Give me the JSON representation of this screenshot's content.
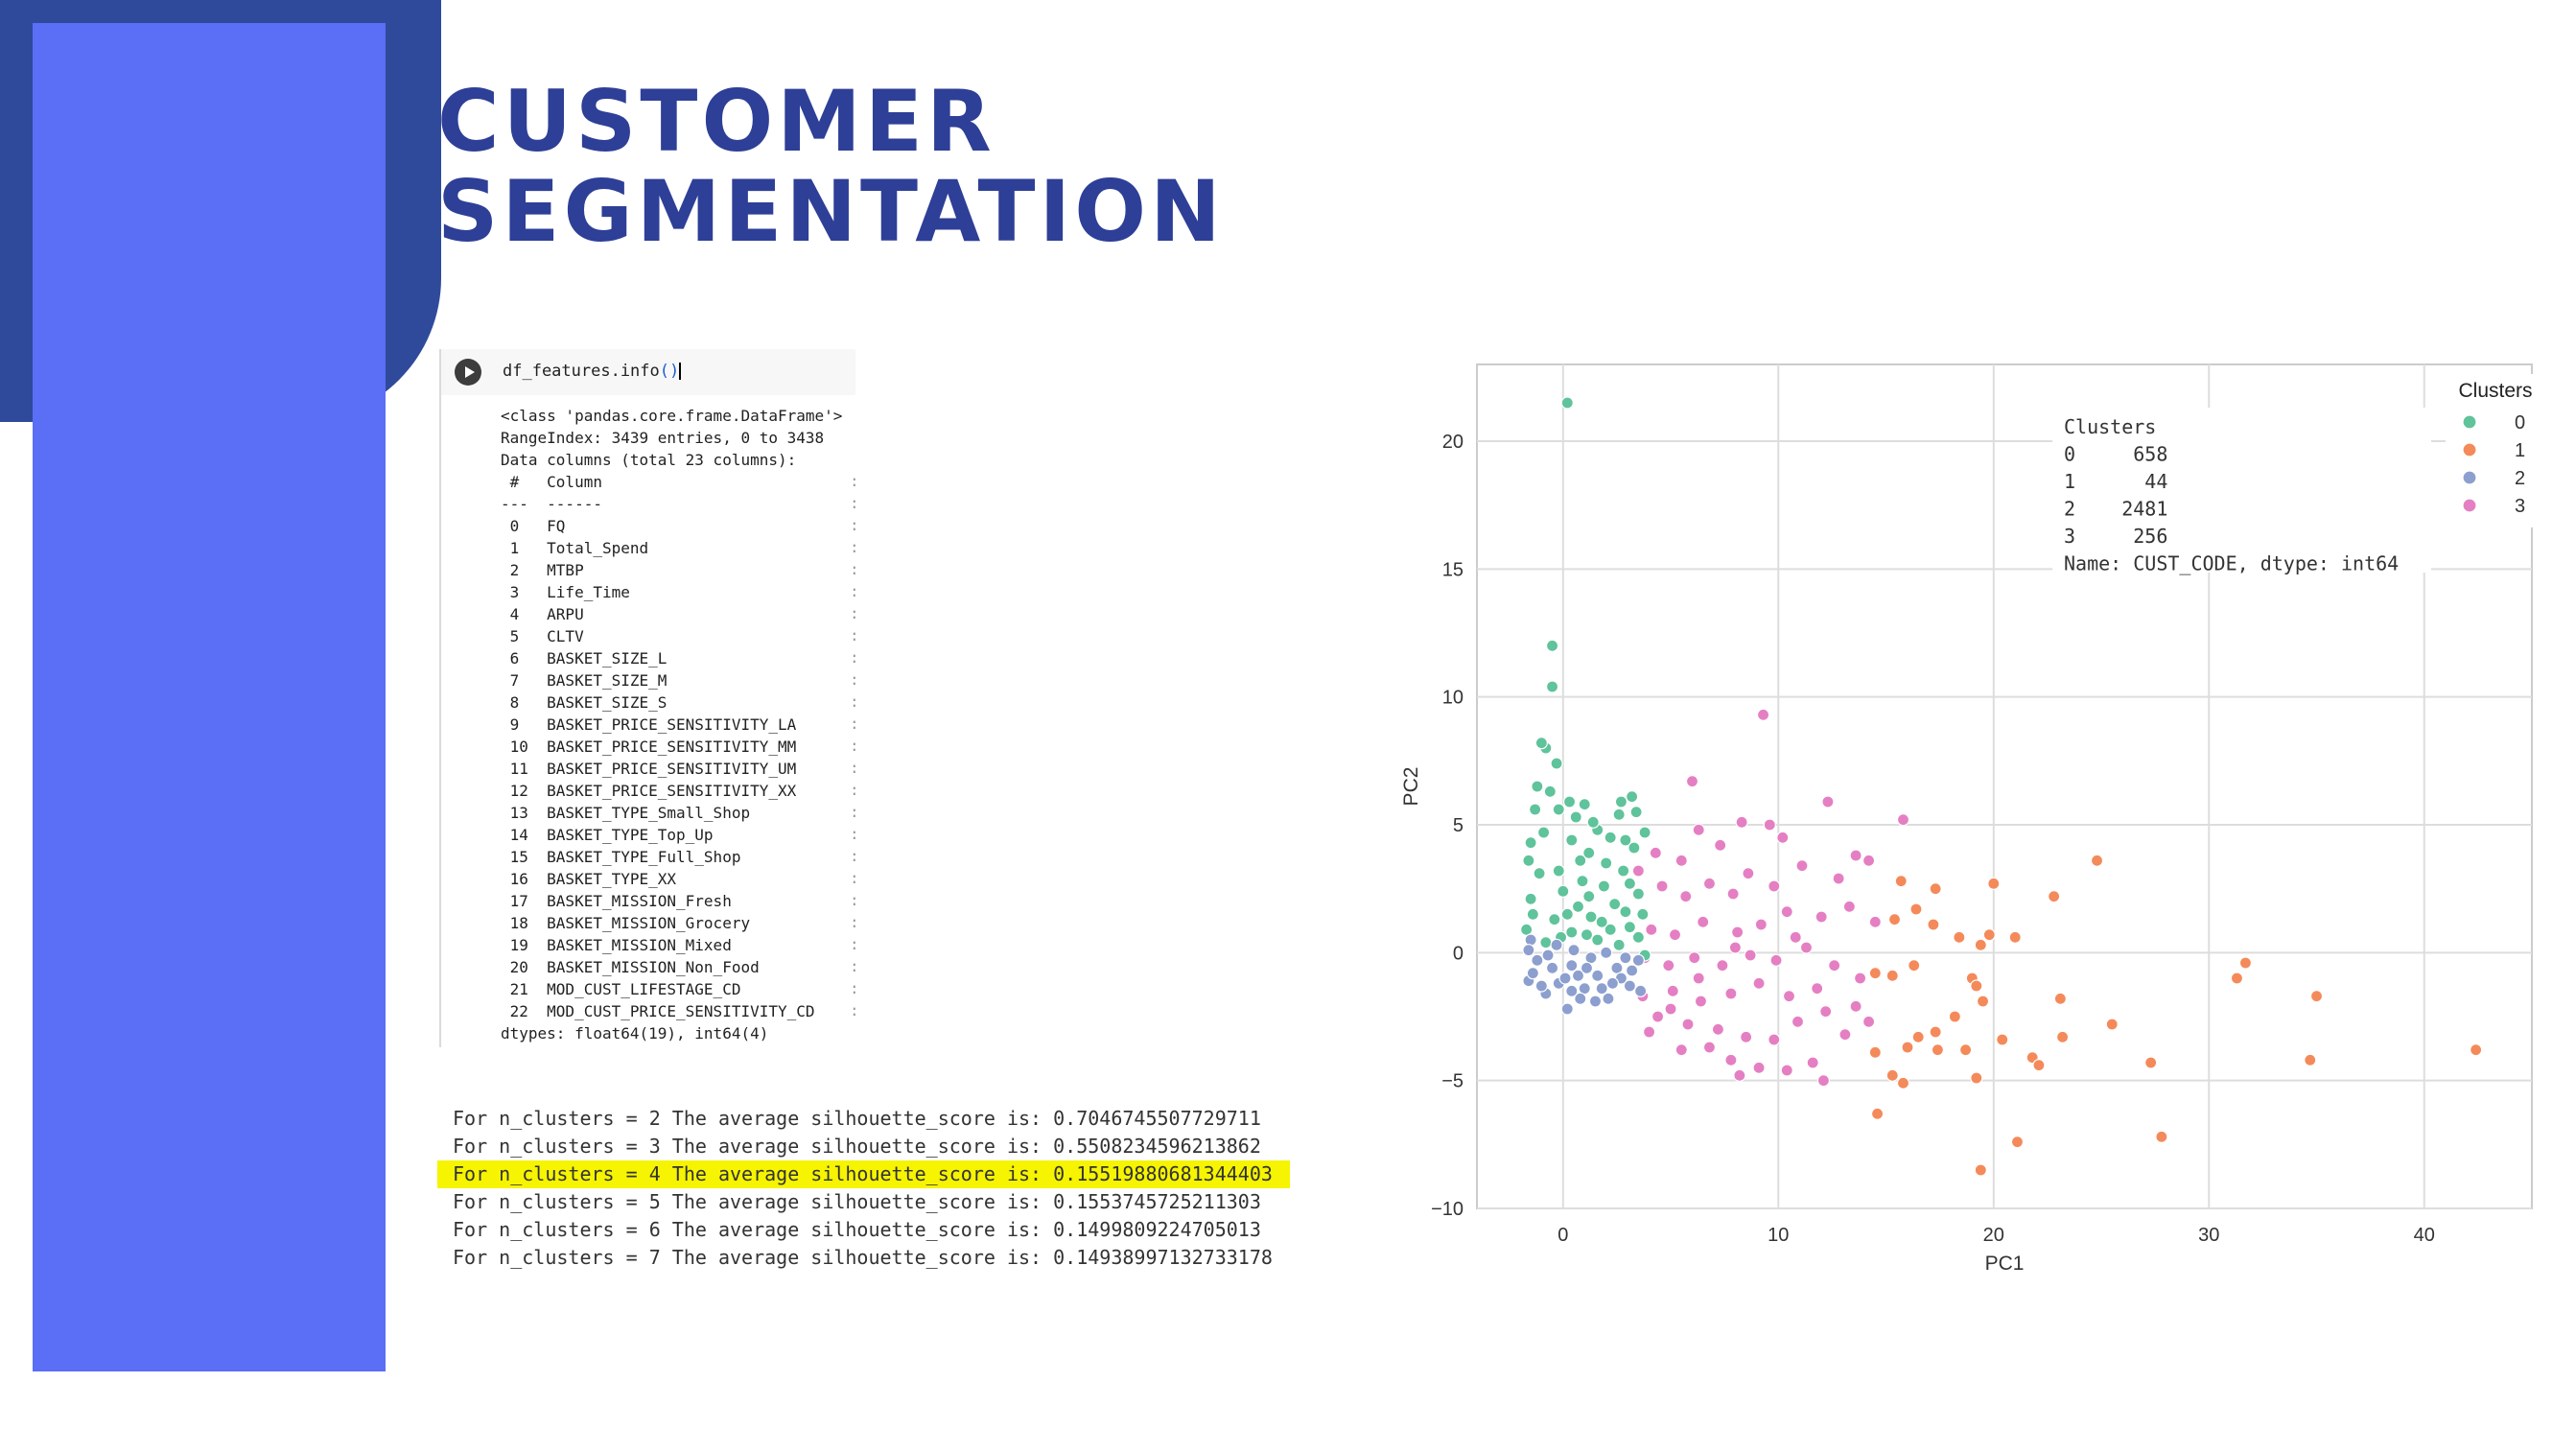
{
  "slide": {
    "title_line1": "CUSTOMER",
    "title_line2": "SEGMENTATION",
    "colors": {
      "dark_block": "#304a9b",
      "panel": "#5a6ef6",
      "title": "#2e3f97",
      "highlight": "#f6f400"
    }
  },
  "notebook": {
    "code": "df_features.info",
    "code_parens": "()",
    "output_lines": [
      "<class 'pandas.core.frame.DataFrame'>",
      "RangeIndex: 3439 entries, 0 to 3438",
      "Data columns (total 23 columns):",
      " #   Column",
      "---  ------",
      " 0   FQ",
      " 1   Total_Spend",
      " 2   MTBP",
      " 3   Life_Time",
      " 4   ARPU",
      " 5   CLTV",
      " 6   BASKET_SIZE_L",
      " 7   BASKET_SIZE_M",
      " 8   BASKET_SIZE_S",
      " 9   BASKET_PRICE_SENSITIVITY_LA",
      " 10  BASKET_PRICE_SENSITIVITY_MM",
      " 11  BASKET_PRICE_SENSITIVITY_UM",
      " 12  BASKET_PRICE_SENSITIVITY_XX",
      " 13  BASKET_TYPE_Small_Shop",
      " 14  BASKET_TYPE_Top_Up",
      " 15  BASKET_TYPE_Full_Shop",
      " 16  BASKET_TYPE_XX",
      " 17  BASKET_MISSION_Fresh",
      " 18  BASKET_MISSION_Grocery",
      " 19  BASKET_MISSION_Mixed",
      " 20  BASKET_MISSION_Non_Food",
      " 21  MOD_CUST_LIFESTAGE_CD",
      " 22  MOD_CUST_PRICE_SENSITIVITY_CD",
      "dtypes: float64(19), int64(4)"
    ]
  },
  "silhouette": [
    "For n_clusters = 2 The average silhouette_score is: 0.7046745507729711",
    "For n_clusters = 3 The average silhouette_score is: 0.5508234596213862",
    "For n_clusters = 4 The average silhouette_score is: 0.15519880681344403",
    "For n_clusters = 5 The average silhouette_score is: 0.1553745725211303",
    "For n_clusters = 6 The average silhouette_score is: 0.1499809224705013",
    "For n_clusters = 7 The average silhouette_score is: 0.14938997132733178"
  ],
  "chart_data": {
    "type": "scatter",
    "xlabel": "PC1",
    "ylabel": "PC2",
    "xlim": [
      -4,
      45
    ],
    "ylim": [
      -10,
      23
    ],
    "xticks": [
      0,
      10,
      20,
      30,
      40
    ],
    "yticks": [
      -10,
      -5,
      0,
      5,
      10,
      15,
      20
    ],
    "tick_labels_x": [
      "0",
      "10",
      "20",
      "30",
      "40"
    ],
    "tick_labels_y": [
      "−10",
      "−5",
      "0",
      "5",
      "10",
      "15",
      "20"
    ],
    "grid": true,
    "legend": {
      "title": "Clusters",
      "placement": "top-right",
      "entries": [
        {
          "label": "0",
          "color": "#5fc39b"
        },
        {
          "label": "1",
          "color": "#f48a5a"
        },
        {
          "label": "2",
          "color": "#8c9fcf"
        },
        {
          "label": "3",
          "color": "#e57fc3"
        }
      ]
    },
    "annotation": {
      "lines": [
        "Clusters",
        "0     658",
        "1      44",
        "2    2481",
        "3     256",
        "Name: CUST_CODE, dtype: int64"
      ]
    },
    "series": [
      {
        "name": "0",
        "color": "#5fc39b",
        "points": [
          [
            0.2,
            21.5
          ],
          [
            -0.5,
            12
          ],
          [
            -0.5,
            10.4
          ],
          [
            -0.8,
            8
          ],
          [
            -1,
            8.2
          ],
          [
            -0.3,
            7.4
          ],
          [
            -1.2,
            6.5
          ],
          [
            -0.6,
            6.3
          ],
          [
            0.3,
            5.9
          ],
          [
            0.6,
            5.3
          ],
          [
            1,
            5.8
          ],
          [
            1.6,
            4.8
          ],
          [
            2.6,
            5.4
          ],
          [
            2.7,
            5.9
          ],
          [
            3.4,
            5.5
          ],
          [
            3.2,
            6.1
          ],
          [
            2.2,
            4.5
          ],
          [
            1.2,
            3.9
          ],
          [
            0.4,
            4.4
          ],
          [
            -1.3,
            5.6
          ],
          [
            -1.5,
            4.3
          ],
          [
            -0.2,
            3.2
          ],
          [
            0.9,
            2.8
          ],
          [
            1.9,
            2.6
          ],
          [
            2.8,
            3.2
          ],
          [
            3.5,
            2.3
          ],
          [
            2.9,
            1.6
          ],
          [
            1.8,
            1.2
          ],
          [
            0.7,
            1.8
          ],
          [
            -0.4,
            1.3
          ],
          [
            -1.5,
            2.1
          ],
          [
            -1.7,
            0.9
          ],
          [
            -0.8,
            0.4
          ],
          [
            0.4,
            0.8
          ],
          [
            1.6,
            0.5
          ],
          [
            2.6,
            0.3
          ],
          [
            3.1,
            1
          ],
          [
            2.4,
            1.9
          ],
          [
            1.2,
            2.2
          ],
          [
            0,
            2.4
          ],
          [
            -1.1,
            3.1
          ],
          [
            -0.9,
            4.7
          ],
          [
            0.8,
            3.6
          ],
          [
            2,
            3.5
          ],
          [
            3.3,
            4.1
          ],
          [
            3.7,
            1.5
          ],
          [
            0.2,
            1.5
          ],
          [
            -1.4,
            1.5
          ],
          [
            2.2,
            0.9
          ],
          [
            1.3,
            1.4
          ],
          [
            3.5,
            0.6
          ],
          [
            3.8,
            4.7
          ],
          [
            2.9,
            4.4
          ],
          [
            1.4,
            5.1
          ],
          [
            -0.2,
            5.6
          ],
          [
            -1.6,
            3.6
          ],
          [
            3.1,
            2.7
          ],
          [
            1.1,
            0.7
          ],
          [
            -0.1,
            0.6
          ],
          [
            3.8,
            -0.1
          ]
        ]
      },
      {
        "name": "1",
        "color": "#f48a5a",
        "points": [
          [
            24.8,
            3.6
          ],
          [
            22.8,
            2.2
          ],
          [
            20,
            2.7
          ],
          [
            17.3,
            2.5
          ],
          [
            15.7,
            2.8
          ],
          [
            16.4,
            1.7
          ],
          [
            15.4,
            1.3
          ],
          [
            17.2,
            1.1
          ],
          [
            19.8,
            0.7
          ],
          [
            21,
            0.6
          ],
          [
            18.4,
            0.6
          ],
          [
            19.4,
            0.3
          ],
          [
            16.3,
            -0.5
          ],
          [
            15.3,
            -0.9
          ],
          [
            14.5,
            -0.8
          ],
          [
            19,
            -1
          ],
          [
            19.2,
            -1.3
          ],
          [
            19.5,
            -1.9
          ],
          [
            23.1,
            -1.8
          ],
          [
            31.7,
            -0.4
          ],
          [
            31.3,
            -1
          ],
          [
            35,
            -1.7
          ],
          [
            42.4,
            -3.8
          ],
          [
            34.7,
            -4.2
          ],
          [
            27.3,
            -4.3
          ],
          [
            23.2,
            -3.3
          ],
          [
            20.4,
            -3.4
          ],
          [
            21.8,
            -4.1
          ],
          [
            22.1,
            -4.4
          ],
          [
            17.3,
            -3.1
          ],
          [
            17.4,
            -3.8
          ],
          [
            18.7,
            -3.8
          ],
          [
            16.5,
            -3.3
          ],
          [
            14.5,
            -3.9
          ],
          [
            15.3,
            -4.8
          ],
          [
            15.8,
            -5.1
          ],
          [
            19.2,
            -4.9
          ],
          [
            14.6,
            -6.3
          ],
          [
            21.1,
            -7.4
          ],
          [
            27.8,
            -7.2
          ],
          [
            19.4,
            -8.5
          ],
          [
            16,
            -3.7
          ],
          [
            25.5,
            -2.8
          ],
          [
            18.2,
            -2.5
          ]
        ]
      },
      {
        "name": "2",
        "color": "#8c9fcf",
        "points": [
          [
            -1.5,
            0.5
          ],
          [
            -1.2,
            -0.3
          ],
          [
            -1.6,
            -1.1
          ],
          [
            -0.8,
            -1.6
          ],
          [
            -0.2,
            -1.2
          ],
          [
            0.4,
            -0.5
          ],
          [
            1,
            -1.4
          ],
          [
            1.6,
            -0.9
          ],
          [
            2.1,
            -1.8
          ],
          [
            2.5,
            -0.6
          ],
          [
            3.1,
            -1.3
          ],
          [
            3.5,
            -0.3
          ],
          [
            0.2,
            -2.2
          ],
          [
            0.5,
            0.1
          ],
          [
            -0.5,
            -0.6
          ],
          [
            1.3,
            -0.2
          ],
          [
            2,
            0
          ],
          [
            2.7,
            -1
          ],
          [
            0.8,
            -1.8
          ],
          [
            -1,
            -1.3
          ],
          [
            -0.3,
            0.3
          ],
          [
            1.8,
            -1.4
          ],
          [
            3.2,
            -0.7
          ],
          [
            0.1,
            -1
          ],
          [
            -1.4,
            -0.8
          ],
          [
            2.3,
            -1.2
          ],
          [
            1.1,
            -0.6
          ],
          [
            0.4,
            -1.5
          ],
          [
            3.6,
            -1.5
          ],
          [
            2.9,
            -0.2
          ],
          [
            -0.7,
            -0.1
          ],
          [
            1.5,
            -1.9
          ],
          [
            -1.6,
            0.1
          ],
          [
            0.7,
            -0.9
          ]
        ]
      },
      {
        "name": "3",
        "color": "#e57fc3",
        "points": [
          [
            9.3,
            9.3
          ],
          [
            6,
            6.7
          ],
          [
            12.3,
            5.9
          ],
          [
            15.8,
            5.2
          ],
          [
            8.3,
            5.1
          ],
          [
            9.6,
            5
          ],
          [
            10.2,
            4.5
          ],
          [
            7.3,
            4.2
          ],
          [
            6.3,
            4.8
          ],
          [
            5.5,
            3.6
          ],
          [
            4.3,
            3.9
          ],
          [
            3.5,
            3.2
          ],
          [
            4.6,
            2.6
          ],
          [
            5.7,
            2.2
          ],
          [
            6.8,
            2.7
          ],
          [
            7.9,
            2.3
          ],
          [
            8.6,
            3.1
          ],
          [
            9.8,
            2.6
          ],
          [
            11.1,
            3.4
          ],
          [
            12.8,
            2.9
          ],
          [
            13.6,
            3.8
          ],
          [
            14.2,
            3.6
          ],
          [
            13.3,
            1.8
          ],
          [
            14.5,
            1.2
          ],
          [
            12,
            1.4
          ],
          [
            10.4,
            1.6
          ],
          [
            9.2,
            1.1
          ],
          [
            8.1,
            0.8
          ],
          [
            6.5,
            1.2
          ],
          [
            5.2,
            0.7
          ],
          [
            4.1,
            0.9
          ],
          [
            3.8,
            -0.2
          ],
          [
            4.9,
            -0.5
          ],
          [
            6.1,
            -0.2
          ],
          [
            7.4,
            -0.5
          ],
          [
            8.7,
            -0.1
          ],
          [
            9.9,
            -0.3
          ],
          [
            11.3,
            0.2
          ],
          [
            12.6,
            -0.5
          ],
          [
            11.8,
            -1.4
          ],
          [
            10.5,
            -1.7
          ],
          [
            9.1,
            -1.2
          ],
          [
            7.8,
            -1.6
          ],
          [
            6.4,
            -1.9
          ],
          [
            5.1,
            -1.5
          ],
          [
            3.7,
            -1.7
          ],
          [
            4.4,
            -2.5
          ],
          [
            5.8,
            -2.8
          ],
          [
            7.2,
            -3
          ],
          [
            8.5,
            -3.3
          ],
          [
            9.8,
            -3.4
          ],
          [
            10.9,
            -2.7
          ],
          [
            12.2,
            -2.3
          ],
          [
            13.6,
            -2.1
          ],
          [
            13.1,
            -3.2
          ],
          [
            11.6,
            -4.3
          ],
          [
            10.4,
            -4.6
          ],
          [
            9.1,
            -4.5
          ],
          [
            7.8,
            -4.2
          ],
          [
            6.8,
            -3.7
          ],
          [
            5.5,
            -3.8
          ],
          [
            4,
            -3.1
          ],
          [
            5,
            -2.2
          ],
          [
            6.3,
            -1
          ],
          [
            8,
            0.2
          ],
          [
            10.8,
            0.6
          ],
          [
            13.8,
            -1
          ],
          [
            14.2,
            -2.7
          ],
          [
            12.1,
            -5
          ],
          [
            8.2,
            -4.8
          ]
        ]
      }
    ]
  }
}
